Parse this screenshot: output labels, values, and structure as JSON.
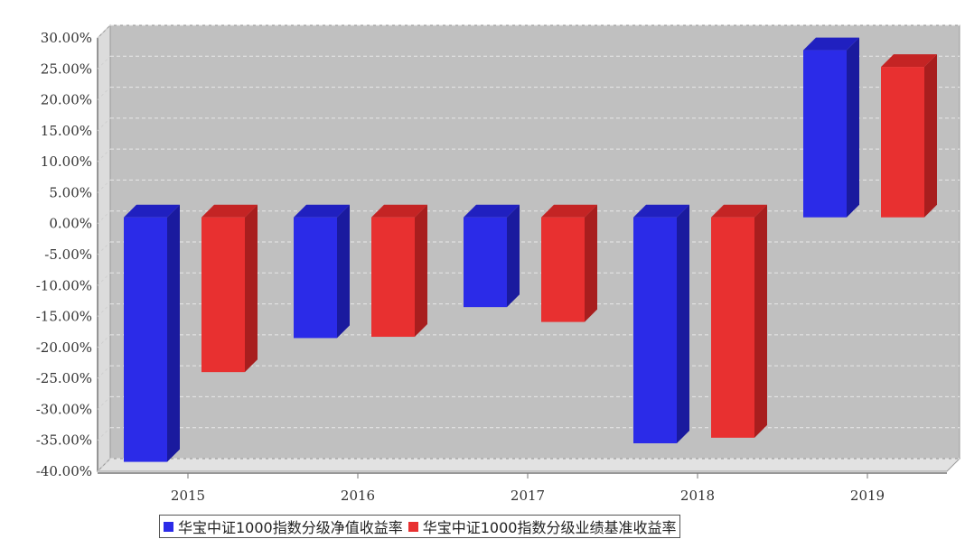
{
  "chart_data": {
    "type": "bar",
    "categories": [
      "2015",
      "2016",
      "2017",
      "2018",
      "2019"
    ],
    "series": [
      {
        "name": "华宝中证1000指数分级净值收益率",
        "color": "#2b2be8",
        "values": [
          -39.5,
          -19.5,
          -14.5,
          -36.5,
          27.0
        ]
      },
      {
        "name": "华宝中证1000指数分级业绩基准收益率",
        "color": "#e83030",
        "values": [
          -25.0,
          -19.3,
          -16.9,
          -35.6,
          24.3
        ]
      }
    ],
    "ylim": [
      -40,
      30
    ],
    "yticks": [
      "30.00%",
      "25.00%",
      "20.00%",
      "15.00%",
      "10.00%",
      "5.00%",
      "0.00%",
      "-5.00%",
      "-10.00%",
      "-15.00%",
      "-20.00%",
      "-25.00%",
      "-30.00%",
      "-35.00%",
      "-40.00%"
    ],
    "ytick_values": [
      30,
      25,
      20,
      15,
      10,
      5,
      0,
      -5,
      -10,
      -15,
      -20,
      -25,
      -30,
      -35,
      -40
    ],
    "grid": true,
    "legend_position": "bottom",
    "style": "3d"
  }
}
